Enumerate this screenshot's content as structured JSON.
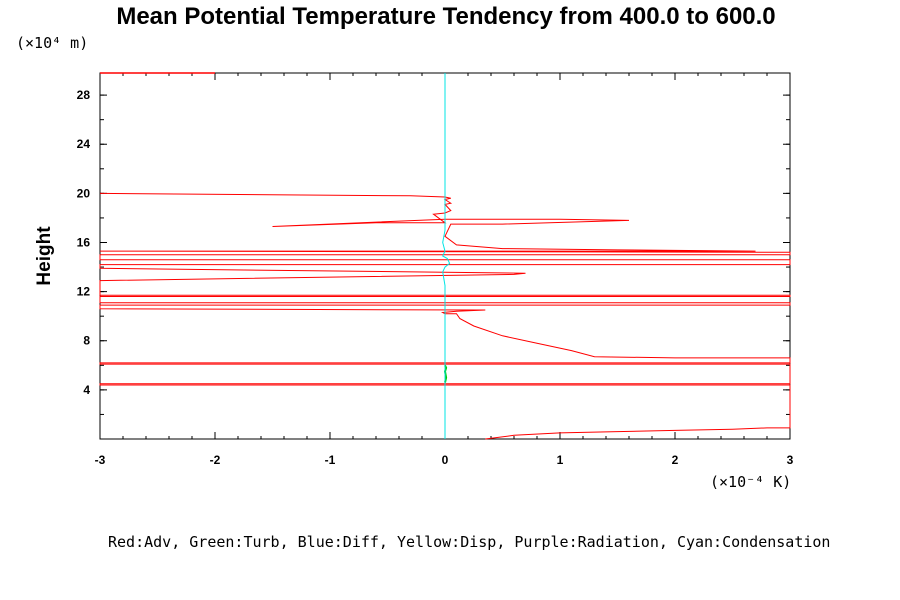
{
  "chart_data": {
    "type": "line",
    "title": "Mean Potential Temperature Tendency from 400.0 to 600.0",
    "ylabel": "Height",
    "y_unit": "(×10⁴ m)",
    "x_unit": "(×10⁻⁴ K)",
    "legend_text": "Red:Adv, Green:Turb, Blue:Diff, Yellow:Disp, Purple:Radiation, Cyan:Condensation",
    "xlim": [
      -3,
      3
    ],
    "ylim": [
      0,
      29.8
    ],
    "x_ticks": [
      -3,
      -2,
      -1,
      0,
      1,
      2,
      3
    ],
    "y_ticks": [
      4,
      8,
      12,
      16,
      20,
      24,
      28
    ],
    "x_tick_labels": [
      "-3",
      "-2",
      "-1",
      "0",
      "1",
      "2",
      "3"
    ],
    "y_tick_labels": [
      "4",
      "8",
      "12",
      "16",
      "20",
      "24",
      "28"
    ],
    "colors": {
      "adv": "#ff0000",
      "turb": "#00cc00",
      "condensation": "#00e5e5",
      "axes": "#000000"
    },
    "series": [
      {
        "name": "Adv",
        "color": "#ff0000",
        "points": [
          [
            0.35,
            0.0
          ],
          [
            0.6,
            0.3
          ],
          [
            1.0,
            0.5
          ],
          [
            1.5,
            0.6
          ],
          [
            2.0,
            0.7
          ],
          [
            2.5,
            0.8
          ],
          [
            2.8,
            0.9
          ],
          [
            3.0,
            0.9
          ],
          [
            3.0,
            4.4
          ],
          [
            -3.0,
            4.4
          ],
          [
            -3.0,
            4.5
          ],
          [
            3.0,
            4.5
          ],
          [
            3.0,
            6.1
          ],
          [
            -3.0,
            6.1
          ],
          [
            -3.0,
            6.2
          ],
          [
            3.0,
            6.2
          ],
          [
            3.0,
            6.6
          ],
          [
            2.0,
            6.6
          ],
          [
            1.3,
            6.7
          ],
          [
            1.1,
            7.2
          ],
          [
            0.8,
            7.8
          ],
          [
            0.5,
            8.4
          ],
          [
            0.25,
            9.2
          ],
          [
            0.13,
            9.8
          ],
          [
            0.1,
            10.2
          ],
          [
            0.0,
            10.2
          ],
          [
            -0.02,
            10.3
          ],
          [
            0.1,
            10.4
          ],
          [
            0.35,
            10.5
          ],
          [
            0.3,
            10.5
          ],
          [
            -3.0,
            10.6
          ],
          [
            -3.0,
            10.9
          ],
          [
            3.0,
            10.9
          ],
          [
            3.0,
            11.1
          ],
          [
            -3.0,
            11.1
          ],
          [
            -3.0,
            11.6
          ],
          [
            3.0,
            11.6
          ],
          [
            3.0,
            11.7
          ],
          [
            -3.0,
            11.7
          ],
          [
            -3.0,
            12.9
          ],
          [
            0.6,
            13.4
          ],
          [
            0.7,
            13.5
          ],
          [
            -3.0,
            13.9
          ],
          [
            -3.0,
            14.2
          ],
          [
            3.0,
            14.2
          ],
          [
            3.0,
            14.6
          ],
          [
            -3.0,
            14.6
          ],
          [
            -3.0,
            15.0
          ],
          [
            3.0,
            15.0
          ],
          [
            3.0,
            15.2
          ],
          [
            -3.0,
            15.3
          ],
          [
            -3.0,
            15.3
          ],
          [
            2.7,
            15.3
          ],
          [
            1.5,
            15.4
          ],
          [
            0.5,
            15.5
          ],
          [
            0.1,
            15.8
          ],
          [
            0.0,
            16.5
          ],
          [
            0.05,
            17.5
          ],
          [
            0.5,
            17.5
          ],
          [
            1.6,
            17.8
          ],
          [
            1.0,
            17.9
          ],
          [
            0.0,
            17.9
          ],
          [
            -1.5,
            17.3
          ],
          [
            -0.6,
            17.6
          ],
          [
            0.0,
            17.6
          ],
          [
            -0.1,
            18.3
          ],
          [
            0.0,
            18.4
          ],
          [
            0.05,
            18.6
          ],
          [
            0.0,
            19.1
          ],
          [
            0.05,
            19.2
          ],
          [
            0.0,
            19.5
          ],
          [
            0.05,
            19.6
          ],
          [
            0.0,
            19.7
          ],
          [
            -0.3,
            19.8
          ],
          [
            -3.0,
            20.0
          ]
        ]
      },
      {
        "name": "Turb",
        "color": "#00cc00",
        "points": [
          [
            0.0,
            4.6
          ],
          [
            0.01,
            5.0
          ],
          [
            0.0,
            5.5
          ],
          [
            0.01,
            5.8
          ],
          [
            0.0,
            6.0
          ]
        ]
      },
      {
        "name": "Condensation",
        "color": "#00e5e5",
        "points": [
          [
            0.0,
            0.0
          ],
          [
            0.0,
            10.0
          ],
          [
            0.0,
            12.5
          ],
          [
            -0.02,
            13.6
          ],
          [
            0.0,
            14.0
          ],
          [
            0.04,
            14.3
          ],
          [
            0.02,
            14.7
          ],
          [
            -0.02,
            14.9
          ],
          [
            0.0,
            15.3
          ],
          [
            -0.02,
            16.0
          ],
          [
            0.0,
            17.0
          ],
          [
            0.0,
            29.8
          ]
        ]
      }
    ],
    "top_edge_segment": {
      "color": "#ff0000",
      "points": [
        [
          -3.0,
          29.8
        ],
        [
          -2.0,
          29.8
        ]
      ]
    }
  }
}
